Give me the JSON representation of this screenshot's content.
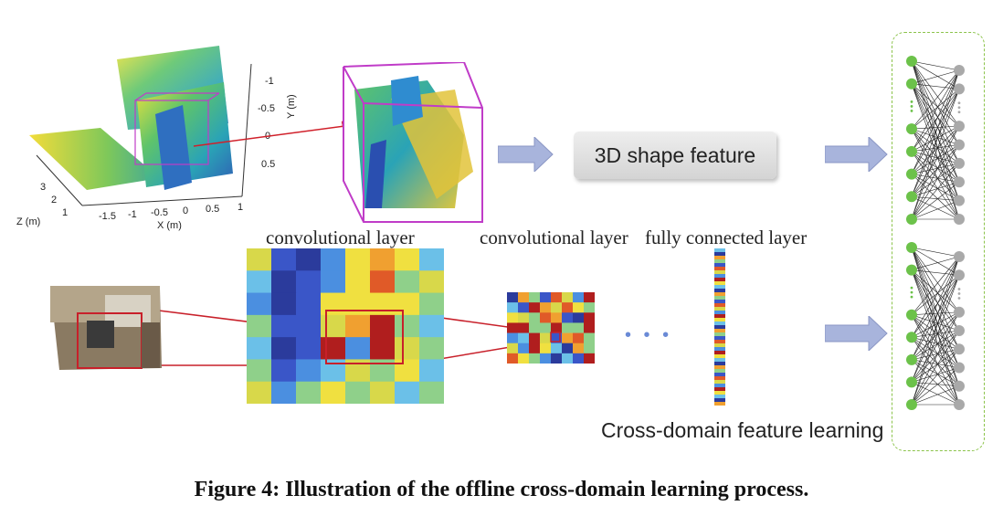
{
  "labels": {
    "shape_feature": "3D shape feature",
    "conv_layer_1": "convolutional layer",
    "conv_layer_2": "convolutional layer",
    "fc_layer": "fully connected layer",
    "cross_domain": "Cross-domain feature learning",
    "ellipsis": "• • •"
  },
  "plot3d": {
    "y_axis_label": "Y (m)",
    "x_axis_label": "X (m)",
    "z_axis_label": "Z (m)",
    "y_ticks": [
      "-1",
      "-0.5",
      "0",
      "0.5"
    ],
    "x_ticks": [
      "-1.5",
      "-1",
      "-0.5",
      "0",
      "0.5",
      "1"
    ],
    "z_ticks": [
      "3",
      "2",
      "1"
    ]
  },
  "caption": "Figure 4: Illustration of the offline cross-domain learning process.",
  "colors": {
    "arrow_fill": "#a8b4dc",
    "green_node": "#6cc24a",
    "gray_node": "#a9a9a9",
    "highlight_red": "#c8202a",
    "cube_edge": "#c03cc8"
  }
}
